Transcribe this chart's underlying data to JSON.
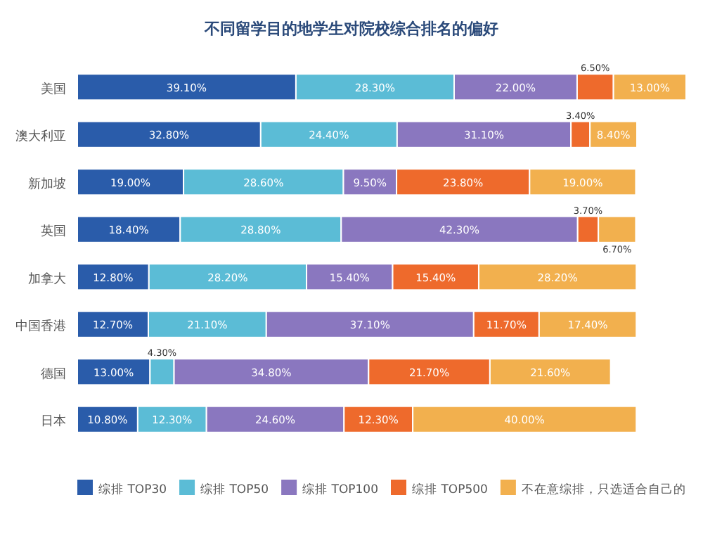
{
  "chart_data": {
    "type": "bar",
    "orientation": "horizontal",
    "stacked": true,
    "legend": "bottom",
    "title": "不同留学目的地学生对院校综合排名的偏好",
    "categories": [
      "美国",
      "澳大利亚",
      "新加坡",
      "英国",
      "加拿大",
      "中国香港",
      "德国",
      "日本"
    ],
    "series": [
      {
        "name": "综排 TOP30",
        "color": "#2a5caa",
        "values": [
          39.1,
          32.8,
          19.0,
          18.4,
          12.8,
          12.7,
          13.0,
          10.8
        ],
        "value_labels": [
          "39.10%",
          "32.80%",
          "19.00%",
          "18.40%",
          "12.80%",
          "12.70%",
          "13.00%",
          "10.80%"
        ]
      },
      {
        "name": "综排 TOP50",
        "color": "#5bbcd6",
        "values": [
          28.3,
          24.4,
          28.6,
          28.8,
          28.2,
          21.1,
          4.3,
          12.3
        ],
        "value_labels": [
          "28.30%",
          "24.40%",
          "28.60%",
          "28.80%",
          "28.20%",
          "21.10%",
          "4.30%",
          "12.30%"
        ]
      },
      {
        "name": "综排 TOP100",
        "color": "#8a77bf",
        "values": [
          22.0,
          31.1,
          9.5,
          42.3,
          15.4,
          37.1,
          34.8,
          24.6
        ],
        "value_labels": [
          "22.00%",
          "31.10%",
          "9.50%",
          "42.30%",
          "15.40%",
          "37.10%",
          "34.80%",
          "24.60%"
        ]
      },
      {
        "name": "综排 TOP500",
        "color": "#ee6a2c",
        "values": [
          6.5,
          3.4,
          23.8,
          3.7,
          15.4,
          11.7,
          21.7,
          12.3
        ],
        "value_labels": [
          "6.50%",
          "3.40%",
          "23.80%",
          "3.70%",
          "15.40%",
          "11.70%",
          "21.70%",
          "12.30%"
        ]
      },
      {
        "name": "不在意综排，只选适合自己的",
        "color": "#f2b04e",
        "values": [
          13.0,
          8.4,
          19.0,
          6.7,
          28.2,
          17.4,
          21.6,
          40.0
        ],
        "value_labels": [
          "13.00%",
          "8.40%",
          "19.00%",
          "6.70%",
          "28.20%",
          "17.40%",
          "21.60%",
          "40.00%"
        ]
      }
    ]
  }
}
